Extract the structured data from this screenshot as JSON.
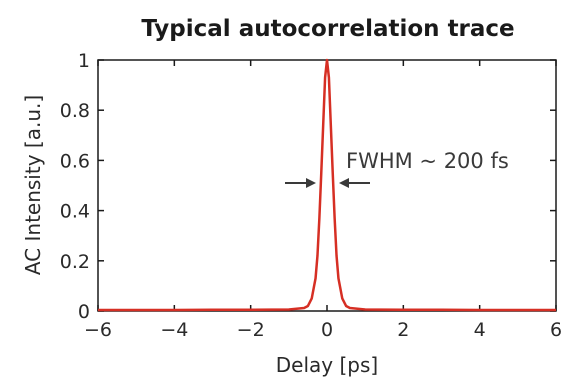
{
  "chart_data": {
    "type": "line",
    "title": "Typical autocorrelation trace",
    "xlabel": "Delay [ps]",
    "ylabel": "AC Intensity [a.u.]",
    "xlim": [
      -6,
      6
    ],
    "ylim": [
      0,
      1
    ],
    "x_ticks": [
      -6,
      -4,
      -2,
      0,
      2,
      4,
      6
    ],
    "y_ticks": [
      0,
      0.2,
      0.4,
      0.6,
      0.8,
      1
    ],
    "x_tick_labels": [
      "−6",
      "−4",
      "−2",
      "0",
      "2",
      "4",
      "6"
    ],
    "y_tick_labels": [
      "0",
      "0.2",
      "0.4",
      "0.6",
      "0.8",
      "1"
    ],
    "grid": false,
    "series": [
      {
        "color": "#d62f24",
        "x": [
          -6,
          -5,
          -4,
          -3,
          -2,
          -1,
          -0.6,
          -0.5,
          -0.4,
          -0.3,
          -0.25,
          -0.2,
          -0.15,
          -0.1,
          -0.05,
          0,
          0.05,
          0.1,
          0.15,
          0.2,
          0.25,
          0.3,
          0.4,
          0.5,
          0.6,
          1,
          2,
          3,
          4,
          5,
          6
        ],
        "y": [
          0.004,
          0.004,
          0.004,
          0.005,
          0.005,
          0.006,
          0.012,
          0.02,
          0.05,
          0.13,
          0.22,
          0.37,
          0.55,
          0.74,
          0.93,
          1.0,
          0.93,
          0.74,
          0.55,
          0.37,
          0.22,
          0.13,
          0.05,
          0.02,
          0.012,
          0.006,
          0.005,
          0.005,
          0.004,
          0.004,
          0.004
        ]
      }
    ],
    "annotations": [
      {
        "text": "FWHM ~ 200 fs"
      }
    ]
  },
  "colors": {
    "axis": "#1a1a1a",
    "arrow": "#3a3a3a",
    "line": "#d62f24"
  }
}
